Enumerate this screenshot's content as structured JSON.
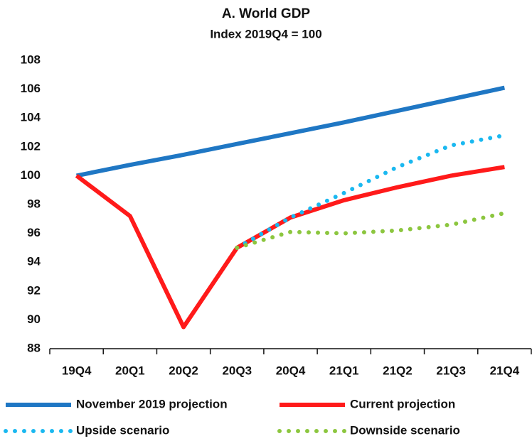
{
  "chart_data": {
    "type": "line",
    "title": "A. World GDP",
    "subtitle": "Index 2019Q4 = 100",
    "categories": [
      "19Q4",
      "20Q1",
      "20Q2",
      "20Q3",
      "20Q4",
      "21Q1",
      "21Q2",
      "21Q3",
      "21Q4"
    ],
    "ylim": [
      88,
      108
    ],
    "yticks": [
      88,
      90,
      92,
      94,
      96,
      98,
      100,
      102,
      104,
      106,
      108
    ],
    "grid": false,
    "legend": "bottom",
    "series": [
      {
        "name": "November 2019 projection",
        "color": "#1f77c4",
        "style": "solid",
        "values": [
          100,
          100.75,
          101.45,
          102.2,
          102.95,
          103.7,
          104.5,
          105.3,
          106.1
        ]
      },
      {
        "name": "Current projection",
        "color": "#ff1a1a",
        "style": "solid",
        "values": [
          100,
          97.2,
          89.5,
          95,
          97.1,
          98.3,
          99.2,
          100,
          100.6
        ]
      },
      {
        "name": "Upside scenario",
        "color": "#1ab8f0",
        "style": "dotted",
        "values": [
          null,
          null,
          null,
          95,
          97.1,
          98.8,
          100.6,
          102.1,
          102.8
        ]
      },
      {
        "name": "Downside scenario",
        "color": "#8cc63f",
        "style": "dotted",
        "values": [
          null,
          null,
          null,
          95,
          96.1,
          96.0,
          96.2,
          96.6,
          97.4
        ]
      }
    ]
  }
}
